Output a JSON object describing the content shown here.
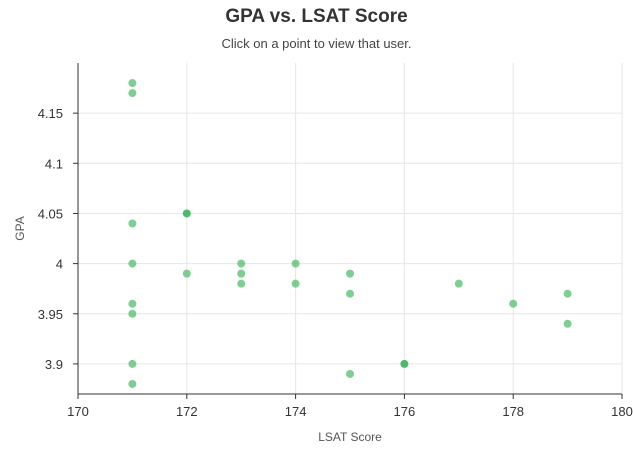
{
  "title": "GPA vs. LSAT Score",
  "subtitle": "Click on a point to view that user.",
  "chart_data": {
    "type": "scatter",
    "xlabel": "LSAT Score",
    "ylabel": "GPA",
    "xlim": [
      170,
      180
    ],
    "ylim": [
      3.87,
      4.2
    ],
    "xticks": [
      "170",
      "172",
      "174",
      "176",
      "178",
      "180"
    ],
    "yticks": [
      "3.9",
      "3.95",
      "4",
      "4.05",
      "4.1",
      "4.15"
    ],
    "grid": true,
    "point_color": "#4cbb66",
    "points": [
      {
        "x": 171,
        "y": 4.18,
        "count": 1
      },
      {
        "x": 171,
        "y": 4.17,
        "count": 1
      },
      {
        "x": 171,
        "y": 4.04,
        "count": 1
      },
      {
        "x": 171,
        "y": 4.0,
        "count": 1
      },
      {
        "x": 171,
        "y": 3.96,
        "count": 1
      },
      {
        "x": 171,
        "y": 3.95,
        "count": 1
      },
      {
        "x": 171,
        "y": 3.9,
        "count": 1
      },
      {
        "x": 171,
        "y": 3.88,
        "count": 1
      },
      {
        "x": 172,
        "y": 4.05,
        "count": 2
      },
      {
        "x": 172,
        "y": 3.99,
        "count": 1
      },
      {
        "x": 173,
        "y": 4.0,
        "count": 1
      },
      {
        "x": 173,
        "y": 3.99,
        "count": 1
      },
      {
        "x": 173,
        "y": 3.98,
        "count": 1
      },
      {
        "x": 174,
        "y": 4.0,
        "count": 1
      },
      {
        "x": 174,
        "y": 3.98,
        "count": 1
      },
      {
        "x": 175,
        "y": 3.99,
        "count": 1
      },
      {
        "x": 175,
        "y": 3.97,
        "count": 1
      },
      {
        "x": 175,
        "y": 3.89,
        "count": 1
      },
      {
        "x": 176,
        "y": 3.9,
        "count": 2
      },
      {
        "x": 177,
        "y": 3.98,
        "count": 1
      },
      {
        "x": 178,
        "y": 3.96,
        "count": 1
      },
      {
        "x": 179,
        "y": 3.97,
        "count": 1
      },
      {
        "x": 179,
        "y": 3.94,
        "count": 1
      }
    ]
  }
}
